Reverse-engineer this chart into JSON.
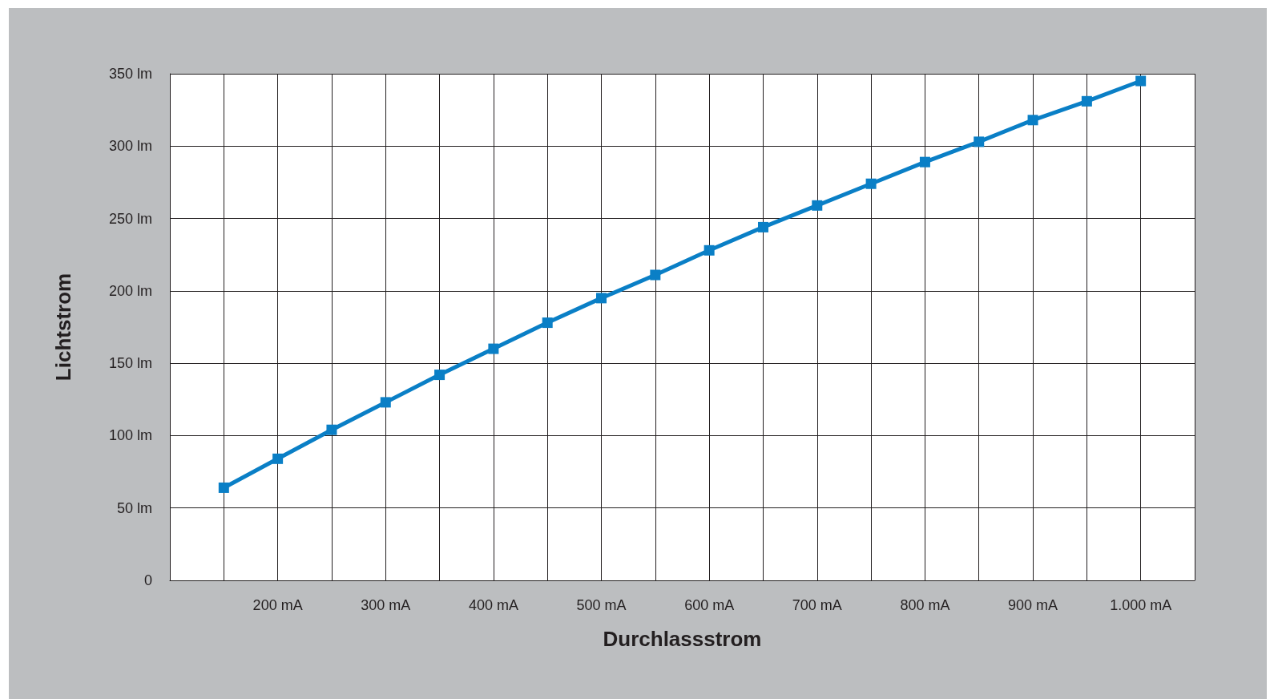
{
  "chart_data": {
    "type": "line",
    "xlabel": "Durchlassstrom",
    "ylabel": "Lichtstrom",
    "x": [
      150,
      200,
      250,
      300,
      350,
      400,
      450,
      500,
      550,
      600,
      650,
      700,
      750,
      800,
      850,
      900,
      950,
      1000
    ],
    "series": [
      {
        "color": "#0a7fc6",
        "values": [
          64,
          84,
          104,
          123,
          142,
          160,
          178,
          195,
          211,
          228,
          244,
          259,
          274,
          289,
          303,
          318,
          331,
          345
        ]
      }
    ],
    "xlim": [
      100,
      1050
    ],
    "xticks": [
      {
        "value": 100,
        "label": null
      },
      {
        "value": 150,
        "label": null
      },
      {
        "value": 200,
        "label": "200 mA"
      },
      {
        "value": 250,
        "label": null
      },
      {
        "value": 300,
        "label": "300 mA"
      },
      {
        "value": 350,
        "label": null
      },
      {
        "value": 400,
        "label": "400 mA"
      },
      {
        "value": 450,
        "label": null
      },
      {
        "value": 500,
        "label": "500 mA"
      },
      {
        "value": 550,
        "label": null
      },
      {
        "value": 600,
        "label": "600 mA"
      },
      {
        "value": 650,
        "label": null
      },
      {
        "value": 700,
        "label": "700 mA"
      },
      {
        "value": 750,
        "label": null
      },
      {
        "value": 800,
        "label": "800 mA"
      },
      {
        "value": 850,
        "label": null
      },
      {
        "value": 900,
        "label": "900 mA"
      },
      {
        "value": 950,
        "label": null
      },
      {
        "value": 1000,
        "label": "1.000 mA"
      },
      {
        "value": 1050,
        "label": null
      }
    ],
    "ylim": [
      0,
      350
    ],
    "yticks": [
      0,
      {
        "value": 50,
        "label": "50 lm"
      },
      {
        "value": 100,
        "label": "100 lm"
      },
      {
        "value": 150,
        "label": "150 lm"
      },
      {
        "value": 200,
        "label": "200 lm"
      },
      {
        "value": 250,
        "label": "250 lm"
      },
      {
        "value": 300,
        "label": "300 lm"
      },
      {
        "value": 350,
        "label": "350 lm"
      }
    ],
    "grid": true,
    "marker": "square",
    "line_style": "solid"
  }
}
